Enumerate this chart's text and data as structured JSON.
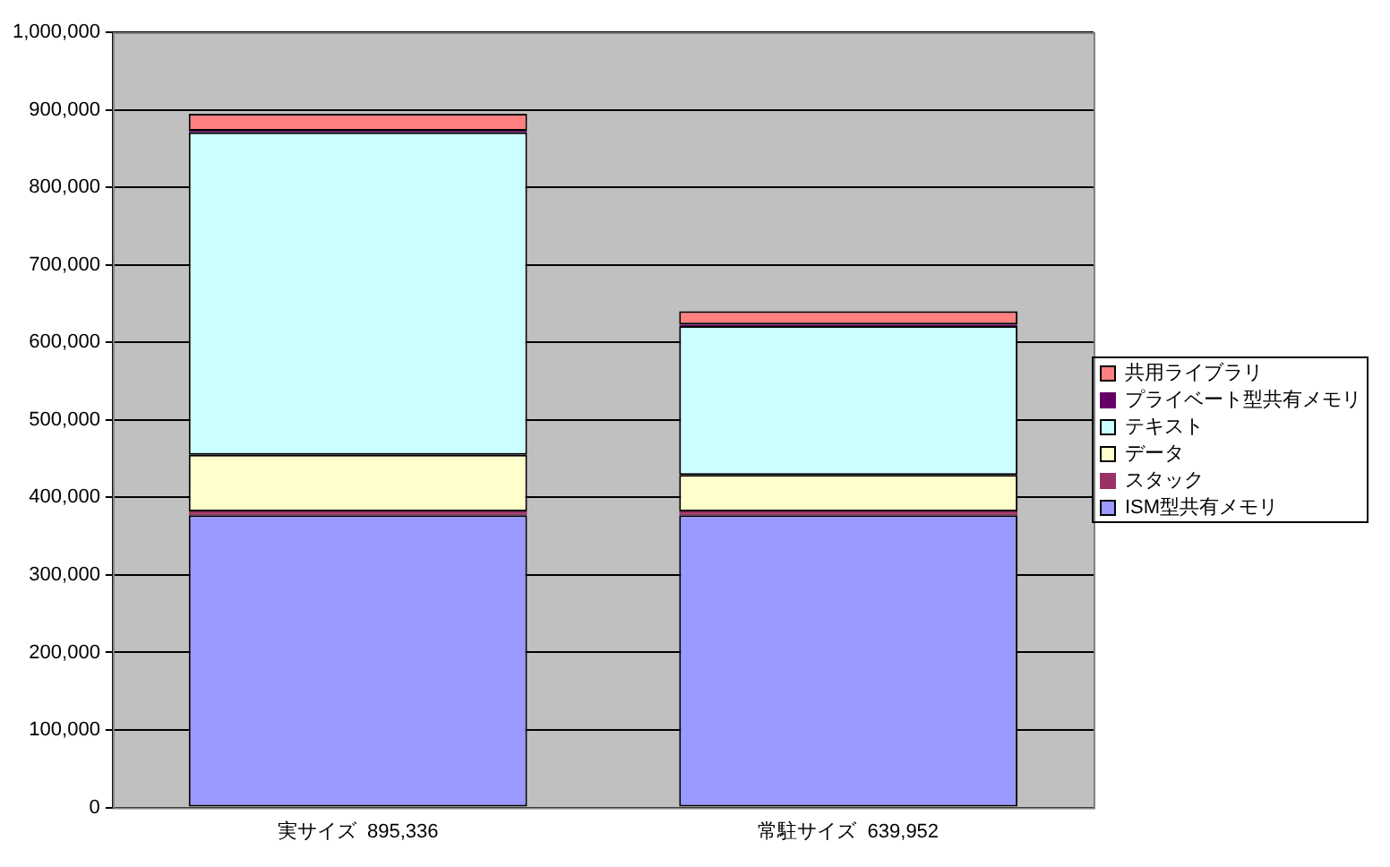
{
  "chart_data": {
    "type": "bar",
    "stacked": true,
    "categories": [
      "実サイズ  895,336",
      "常駐サイズ  639,952"
    ],
    "series": [
      {
        "name": "ISM型共有メモリ",
        "color": "#9999ff",
        "values": [
          377000,
          377000
        ]
      },
      {
        "name": "スタック",
        "color": "#993366",
        "values": [
          5000,
          5000
        ]
      },
      {
        "name": "データ",
        "color": "#ffffcc",
        "values": [
          73000,
          47000
        ]
      },
      {
        "name": "テキスト",
        "color": "#ccffff",
        "values": [
          416000,
          192000
        ]
      },
      {
        "name": "プライベート型共有メモリ",
        "color": "#660066",
        "values": [
          2000,
          2000
        ]
      },
      {
        "name": "共用ライブラリ",
        "color": "#ff8080",
        "values": [
          22000,
          17000
        ]
      }
    ],
    "ylim": [
      0,
      1000000
    ],
    "yticks": [
      0,
      {
        "value": 100000,
        "label": "100,000"
      },
      {
        "value": 200000,
        "label": "200,000"
      },
      {
        "value": 300000,
        "label": "300,000"
      },
      {
        "value": 400000,
        "label": "400,000"
      },
      {
        "value": 500000,
        "label": "500,000"
      },
      {
        "value": 600000,
        "label": "600,000"
      },
      {
        "value": 700000,
        "label": "700,000"
      },
      {
        "value": 800000,
        "label": "800,000"
      },
      {
        "value": 900000,
        "label": "900,000"
      },
      {
        "value": 1000000,
        "label": "1,000,000"
      }
    ],
    "grid": "y",
    "legend": "right"
  }
}
